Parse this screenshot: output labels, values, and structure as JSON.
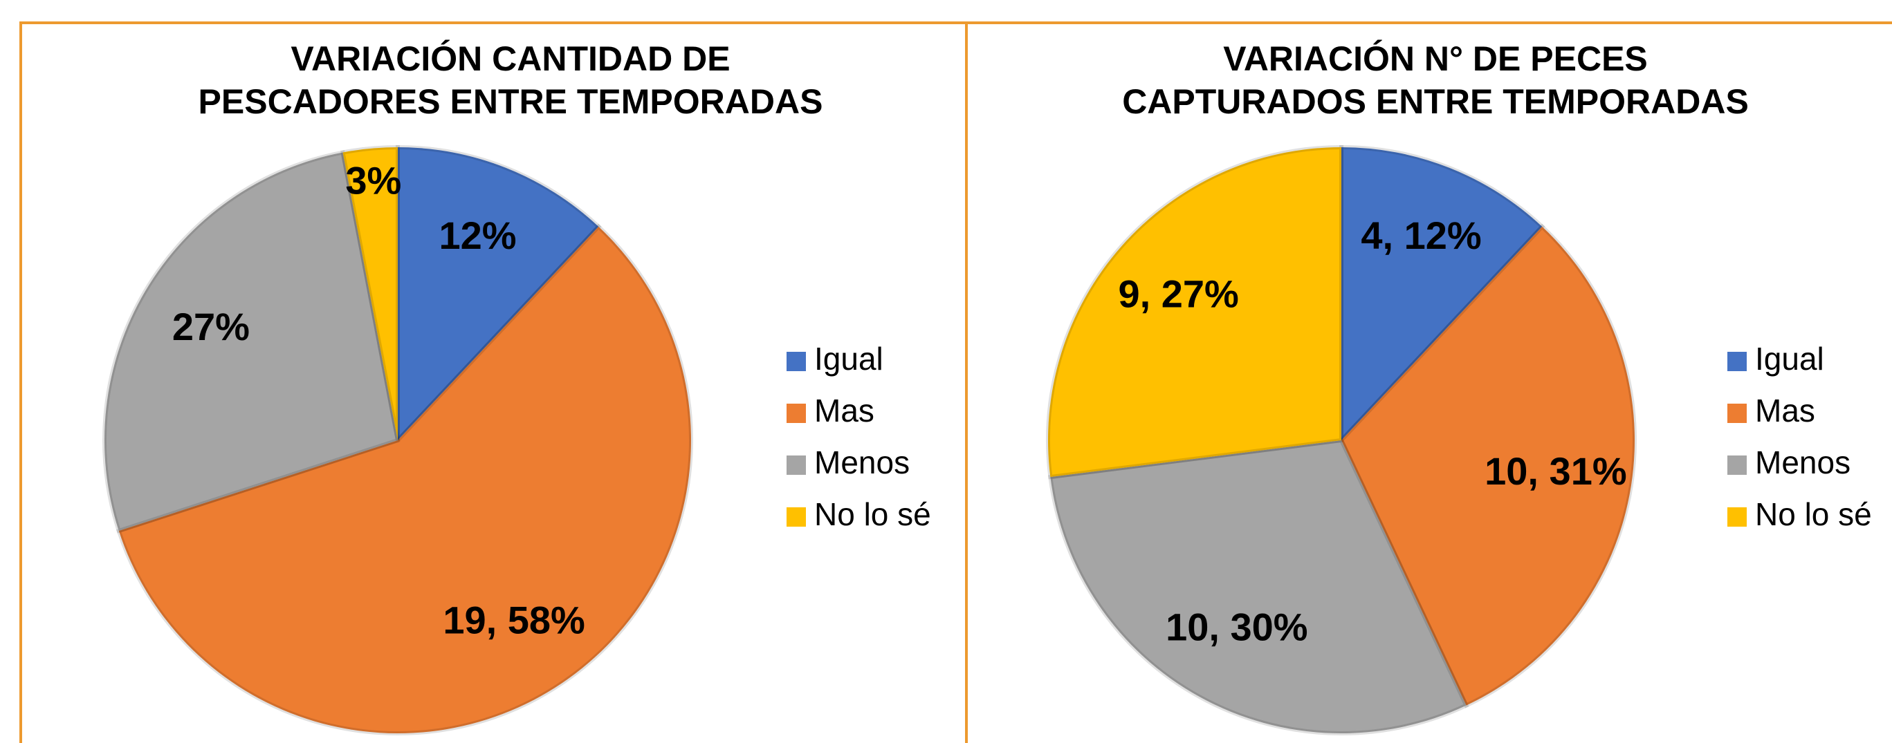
{
  "chart_data": [
    {
      "type": "pie",
      "title": [
        "VARIACIÓN CANTIDAD DE",
        "PESCADORES ENTRE TEMPORADAS"
      ],
      "categories": [
        "Igual",
        "Mas",
        "Menos",
        "No lo sé"
      ],
      "values": [
        12,
        58,
        27,
        3
      ],
      "value_labels": [
        "12%",
        "19, 58%",
        "27%",
        "3%"
      ],
      "colors": [
        "#4472c4",
        "#ed7d31",
        "#a5a5a5",
        "#ffc000"
      ]
    },
    {
      "type": "pie",
      "title": [
        "VARIACIÓN N° DE PECES",
        "CAPTURADOS ENTRE TEMPORADAS"
      ],
      "categories": [
        "Igual",
        "Mas",
        "Menos",
        "No lo sé"
      ],
      "values": [
        12,
        31,
        30,
        27
      ],
      "value_labels": [
        "4, 12%",
        "10, 31%",
        "10, 30%",
        "9, 27%"
      ],
      "colors": [
        "#4472c4",
        "#ed7d31",
        "#a5a5a5",
        "#ffc000"
      ]
    }
  ]
}
